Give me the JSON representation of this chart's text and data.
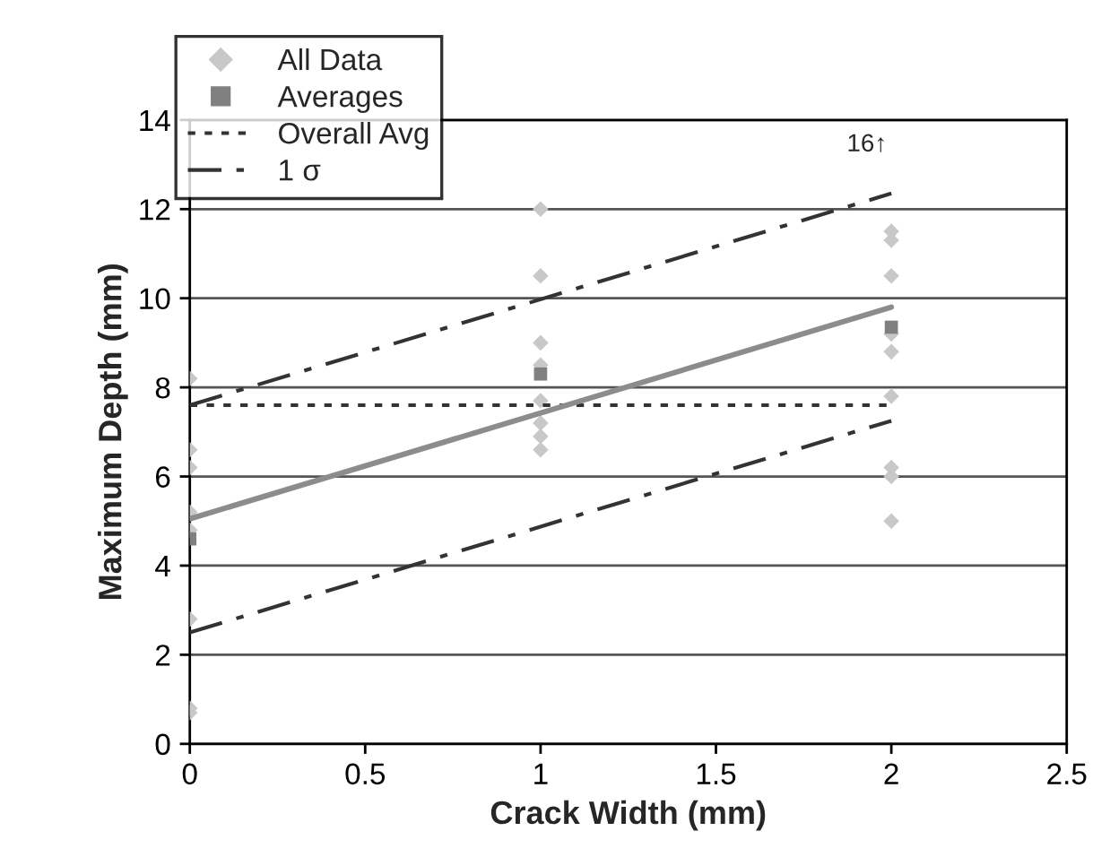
{
  "chart_data": {
    "type": "scatter",
    "xlabel": "Crack Width (mm)",
    "ylabel": "Maximum Depth (mm)",
    "xlim": [
      0,
      2.5
    ],
    "xticks": [
      0,
      0.5,
      1,
      1.5,
      2,
      2.5
    ],
    "ylim": [
      0,
      14
    ],
    "yticks": [
      0,
      2,
      4,
      6,
      8,
      10,
      12,
      14
    ],
    "grid": "y",
    "legend": "top left",
    "annotations": [
      "16↑"
    ],
    "series": [
      {
        "name": "All Data",
        "marker": "diamond",
        "color": "#c8c8c8",
        "x": [
          0,
          0,
          0,
          0,
          0,
          0,
          0,
          0,
          1,
          1,
          1,
          1,
          1,
          1,
          1,
          1,
          2,
          2,
          2,
          2,
          2,
          2,
          2,
          2,
          2
        ],
        "values": [
          8.2,
          6.6,
          6.2,
          5.2,
          4.8,
          2.8,
          0.8,
          0.7,
          12.0,
          10.5,
          9.0,
          8.5,
          7.7,
          7.2,
          6.9,
          6.6,
          11.5,
          11.3,
          10.5,
          9.2,
          8.8,
          7.8,
          6.2,
          6.0,
          5.0
        ]
      },
      {
        "name": "Averages",
        "marker": "square",
        "color": "#808080",
        "x": [
          0,
          1,
          2
        ],
        "values": [
          4.6,
          8.3,
          9.35
        ]
      },
      {
        "name": "Overall Avg",
        "type": "line",
        "line_style": "dotted",
        "color": "#333333",
        "x": [
          0,
          2
        ],
        "values": [
          7.6,
          7.6
        ]
      },
      {
        "name": "1 σ",
        "type": "line",
        "line_style": "dashdot",
        "color": "#333333",
        "x": [
          0,
          2
        ],
        "values": [
          7.6,
          12.35
        ]
      },
      {
        "type": "line",
        "line_style": "dashdot",
        "color": "#333333",
        "x": [
          0,
          2
        ],
        "values": [
          2.5,
          7.25
        ]
      },
      {
        "type": "line",
        "line_style": "solid",
        "color": "#8c8c8c",
        "x": [
          0,
          2
        ],
        "values": [
          5.05,
          9.8
        ]
      }
    ]
  }
}
